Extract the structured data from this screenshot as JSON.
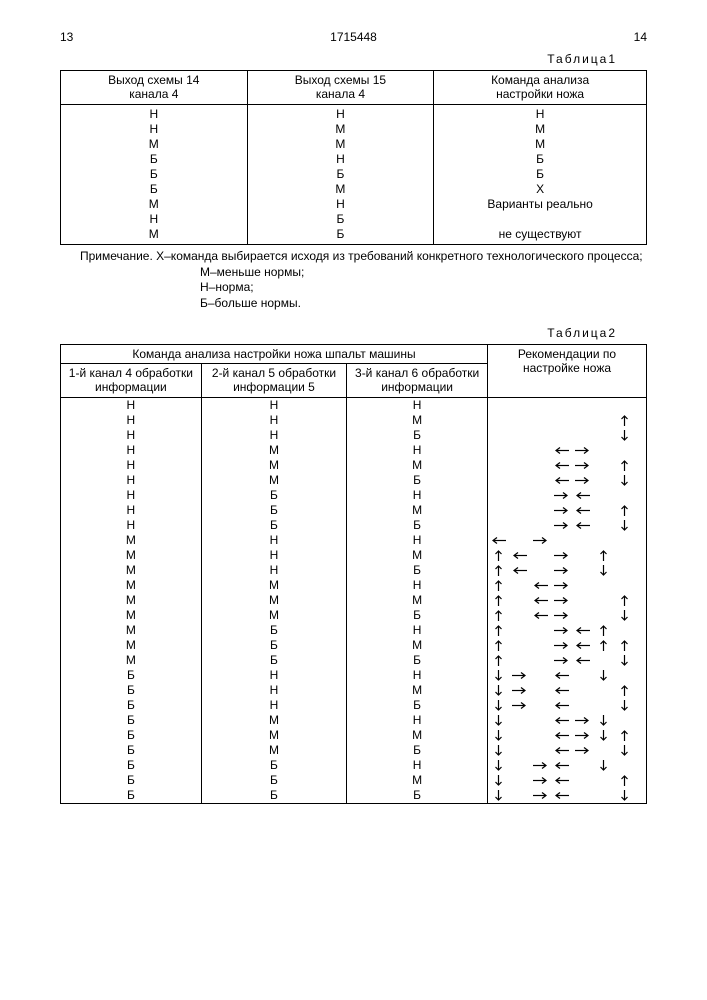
{
  "header": {
    "left_page": "13",
    "doc_number": "1715448",
    "right_page": "14"
  },
  "table1": {
    "caption": "Таблица1",
    "headers": [
      "Выход схемы 14\nканала 4",
      "Выход схемы 15\nканала 4",
      "Команда анализа\nнастройки ножа"
    ],
    "rows": [
      [
        "Н",
        "Н",
        "Н"
      ],
      [
        "Н",
        "М",
        "М"
      ],
      [
        "М",
        "М",
        "М"
      ],
      [
        "Б",
        "Н",
        "Б"
      ],
      [
        "Б",
        "Б",
        "Б"
      ],
      [
        "Б",
        "М",
        "Х"
      ],
      [
        "М",
        "Н",
        "Варианты реально"
      ],
      [
        "Н",
        "Б",
        ""
      ],
      [
        "М",
        "Б",
        "не существуют"
      ]
    ],
    "note": "Примечание. Х–команда выбирается исходя из требований конкретного технологического процесса;",
    "legend_m": "М–меньше нормы;",
    "legend_n": "Н–норма;",
    "legend_b": "Б–больше нормы."
  },
  "table2": {
    "caption": "Таблица2",
    "main_header": "Команда анализа настройки ножа шпальт машины",
    "rec_header": "Рекомендации по настройке ножа",
    "sub_headers": [
      "1-й канал 4 обработки  информации",
      "2-й канал 5 обработки информации 5",
      "3-й канал 6 обработки информации"
    ],
    "rows": [
      {
        "c": [
          "Н",
          "Н",
          "Н"
        ],
        "a": [
          "",
          "",
          "",
          "",
          "",
          "",
          ""
        ]
      },
      {
        "c": [
          "Н",
          "Н",
          "М"
        ],
        "a": [
          "",
          "",
          "",
          "",
          "",
          "",
          "u"
        ]
      },
      {
        "c": [
          "Н",
          "Н",
          "Б"
        ],
        "a": [
          "",
          "",
          "",
          "",
          "",
          "",
          "d"
        ]
      },
      {
        "c": [
          "Н",
          "М",
          "Н"
        ],
        "a": [
          "",
          "",
          "",
          "l",
          "r",
          "",
          ""
        ]
      },
      {
        "c": [
          "Н",
          "М",
          "М"
        ],
        "a": [
          "",
          "",
          "",
          "l",
          "r",
          "",
          "u"
        ]
      },
      {
        "c": [
          "Н",
          "М",
          "Б"
        ],
        "a": [
          "",
          "",
          "",
          "l",
          "r",
          "",
          "d"
        ]
      },
      {
        "c": [
          "Н",
          "Б",
          "Н"
        ],
        "a": [
          "",
          "",
          "",
          "r",
          "l",
          "",
          ""
        ]
      },
      {
        "c": [
          "Н",
          "Б",
          "М"
        ],
        "a": [
          "",
          "",
          "",
          "r",
          "l",
          "",
          "u"
        ]
      },
      {
        "c": [
          "Н",
          "Б",
          "Б"
        ],
        "a": [
          "",
          "",
          "",
          "r",
          "l",
          "",
          "d"
        ]
      },
      {
        "c": [
          "М",
          "Н",
          "Н"
        ],
        "a": [
          "l",
          "",
          "r",
          "",
          "",
          "",
          ""
        ]
      },
      {
        "c": [
          "М",
          "Н",
          "М"
        ],
        "a": [
          "u",
          "l",
          "",
          "r",
          "",
          "u",
          ""
        ]
      },
      {
        "c": [
          "М",
          "Н",
          "Б"
        ],
        "a": [
          "u",
          "l",
          "",
          "r",
          "",
          "d",
          ""
        ]
      },
      {
        "c": [
          "М",
          "М",
          "Н"
        ],
        "a": [
          "u",
          "",
          "l",
          "r",
          "",
          "",
          ""
        ]
      },
      {
        "c": [
          "М",
          "М",
          "М"
        ],
        "a": [
          "u",
          "",
          "l",
          "r",
          "",
          "",
          "u"
        ]
      },
      {
        "c": [
          "М",
          "М",
          "Б"
        ],
        "a": [
          "u",
          "",
          "l",
          "r",
          "",
          "",
          "d"
        ]
      },
      {
        "c": [
          "М",
          "Б",
          "Н"
        ],
        "a": [
          "u",
          "",
          "",
          "r",
          "l",
          "u",
          ""
        ]
      },
      {
        "c": [
          "М",
          "Б",
          "М"
        ],
        "a": [
          "u",
          "",
          "",
          "r",
          "l",
          "u",
          "u"
        ]
      },
      {
        "c": [
          "М",
          "Б",
          "Б"
        ],
        "a": [
          "u",
          "",
          "",
          "r",
          "l",
          "",
          "d"
        ]
      },
      {
        "c": [
          "Б",
          "Н",
          "Н"
        ],
        "a": [
          "d",
          "r",
          "",
          "l",
          "",
          "d",
          ""
        ]
      },
      {
        "c": [
          "Б",
          "Н",
          "М"
        ],
        "a": [
          "d",
          "r",
          "",
          "l",
          "",
          "",
          "u"
        ]
      },
      {
        "c": [
          "Б",
          "Н",
          "Б"
        ],
        "a": [
          "d",
          "r",
          "",
          "l",
          "",
          "",
          "d"
        ]
      },
      {
        "c": [
          "Б",
          "М",
          "Н"
        ],
        "a": [
          "d",
          "",
          "",
          "l",
          "r",
          "d",
          ""
        ]
      },
      {
        "c": [
          "Б",
          "М",
          "М"
        ],
        "a": [
          "d",
          "",
          "",
          "l",
          "r",
          "d",
          "u"
        ]
      },
      {
        "c": [
          "Б",
          "М",
          "Б"
        ],
        "a": [
          "d",
          "",
          "",
          "l",
          "r",
          "",
          "d"
        ]
      },
      {
        "c": [
          "Б",
          "Б",
          "Н"
        ],
        "a": [
          "d",
          "",
          "r",
          "l",
          "",
          "d",
          ""
        ]
      },
      {
        "c": [
          "Б",
          "Б",
          "М"
        ],
        "a": [
          "d",
          "",
          "r",
          "l",
          "",
          "",
          "u"
        ]
      },
      {
        "c": [
          "Б",
          "Б",
          "Б"
        ],
        "a": [
          "d",
          "",
          "r",
          "l",
          "",
          "",
          "d"
        ]
      }
    ]
  },
  "arrow_style": {
    "color": "#000",
    "stroke_width": 1.2
  }
}
